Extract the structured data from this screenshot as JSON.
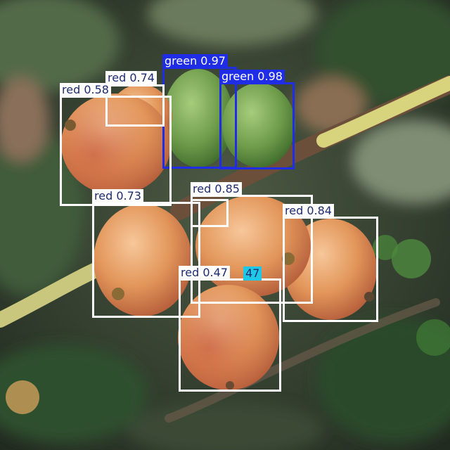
{
  "colors": {
    "red_class": "#ffffff",
    "green_class": "#1f2ee6",
    "aux_label": "#1ec8e6"
  },
  "detections": [
    {
      "id": "d1",
      "class": "green",
      "label": "green 0.97"
    },
    {
      "id": "d2",
      "class": "green",
      "label": "green 0.98"
    },
    {
      "id": "d3",
      "class": "red",
      "label": "red 0.74"
    },
    {
      "id": "d4",
      "class": "red",
      "label": "red 0.58"
    },
    {
      "id": "d5",
      "class": "red",
      "label": "red 0.73"
    },
    {
      "id": "d6",
      "class": "red",
      "label": "red 0.85"
    },
    {
      "id": "d7",
      "class": "red",
      "label": "red 0.84"
    },
    {
      "id": "d8",
      "class": "red",
      "label": "red 0.47"
    }
  ],
  "overlap_fragment": "47"
}
